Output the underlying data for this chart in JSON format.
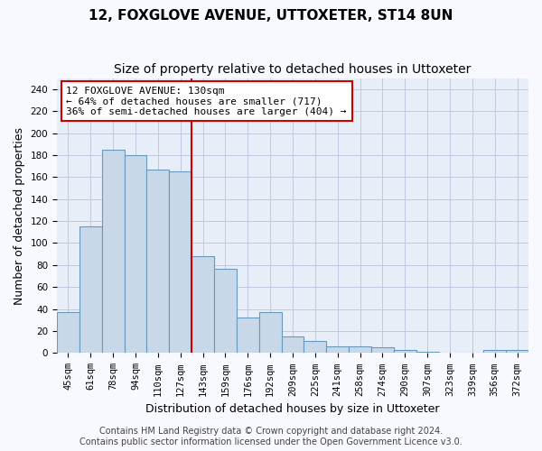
{
  "title": "12, FOXGLOVE AVENUE, UTTOXETER, ST14 8UN",
  "subtitle": "Size of property relative to detached houses in Uttoxeter",
  "xlabel": "Distribution of detached houses by size in Uttoxeter",
  "ylabel": "Number of detached properties",
  "categories": [
    "45sqm",
    "61sqm",
    "78sqm",
    "94sqm",
    "110sqm",
    "127sqm",
    "143sqm",
    "159sqm",
    "176sqm",
    "192sqm",
    "209sqm",
    "225sqm",
    "241sqm",
    "258sqm",
    "274sqm",
    "290sqm",
    "307sqm",
    "323sqm",
    "339sqm",
    "356sqm",
    "372sqm"
  ],
  "values": [
    37,
    115,
    185,
    180,
    167,
    165,
    88,
    77,
    32,
    37,
    15,
    11,
    6,
    6,
    5,
    3,
    1,
    0,
    0,
    3,
    3
  ],
  "bar_color": "#c8d8e8",
  "bar_edge_color": "#6699bb",
  "vline_index": 5,
  "vline_color": "#cc0000",
  "annotation_text": "12 FOXGLOVE AVENUE: 130sqm\n← 64% of detached houses are smaller (717)\n36% of semi-detached houses are larger (404) →",
  "annotation_box_color": "#ffffff",
  "annotation_box_edge": "#cc0000",
  "ylim": [
    0,
    250
  ],
  "yticks": [
    0,
    20,
    40,
    60,
    80,
    100,
    120,
    140,
    160,
    180,
    200,
    220,
    240
  ],
  "footer": "Contains HM Land Registry data © Crown copyright and database right 2024.\nContains public sector information licensed under the Open Government Licence v3.0.",
  "bg_color": "#e8eef8",
  "grid_color": "#c0c8e0",
  "title_fontsize": 11,
  "subtitle_fontsize": 10,
  "xlabel_fontsize": 9,
  "ylabel_fontsize": 9,
  "tick_fontsize": 7.5,
  "annotation_fontsize": 8,
  "footer_fontsize": 7
}
